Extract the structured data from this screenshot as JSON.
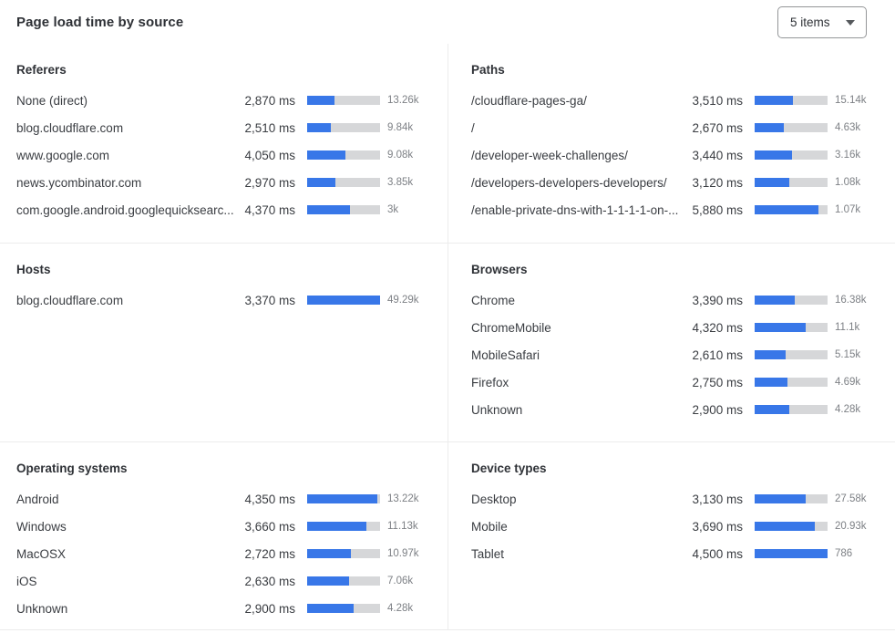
{
  "header": {
    "title": "Page load time by source",
    "items_select": {
      "value": "5 items"
    }
  },
  "colors": {
    "bar_fill": "#3877e8",
    "bar_track": "#d6d7d9",
    "divider": "#ececec"
  },
  "panels": [
    {
      "title": "Referers",
      "rows": [
        {
          "label": "None (direct)",
          "time": "2,870 ms",
          "count": "13.26k",
          "pct": 38
        },
        {
          "label": "blog.cloudflare.com",
          "time": "2,510 ms",
          "count": "9.84k",
          "pct": 33
        },
        {
          "label": "www.google.com",
          "time": "4,050 ms",
          "count": "9.08k",
          "pct": 52
        },
        {
          "label": "news.ycombinator.com",
          "time": "2,970 ms",
          "count": "3.85k",
          "pct": 39
        },
        {
          "label": "com.google.android.googlequicksearc...",
          "time": "4,370 ms",
          "count": "3k",
          "pct": 59
        }
      ]
    },
    {
      "title": "Paths",
      "rows": [
        {
          "label": "/cloudflare-pages-ga/",
          "time": "3,510 ms",
          "count": "15.14k",
          "pct": 52
        },
        {
          "label": "/",
          "time": "2,670 ms",
          "count": "4.63k",
          "pct": 40
        },
        {
          "label": "/developer-week-challenges/",
          "time": "3,440 ms",
          "count": "3.16k",
          "pct": 51
        },
        {
          "label": "/developers-developers-developers/",
          "time": "3,120 ms",
          "count": "1.08k",
          "pct": 47
        },
        {
          "label": "/enable-private-dns-with-1-1-1-1-on-...",
          "time": "5,880 ms",
          "count": "1.07k",
          "pct": 88
        }
      ]
    },
    {
      "title": "Hosts",
      "rows": [
        {
          "label": "blog.cloudflare.com",
          "time": "3,370 ms",
          "count": "49.29k",
          "pct": 100
        }
      ]
    },
    {
      "title": "Browsers",
      "rows": [
        {
          "label": "Chrome",
          "time": "3,390 ms",
          "count": "16.38k",
          "pct": 55
        },
        {
          "label": "ChromeMobile",
          "time": "4,320 ms",
          "count": "11.1k",
          "pct": 70
        },
        {
          "label": "MobileSafari",
          "time": "2,610 ms",
          "count": "5.15k",
          "pct": 42
        },
        {
          "label": "Firefox",
          "time": "2,750 ms",
          "count": "4.69k",
          "pct": 45
        },
        {
          "label": "Unknown",
          "time": "2,900 ms",
          "count": "4.28k",
          "pct": 47
        }
      ]
    },
    {
      "title": "Operating systems",
      "rows": [
        {
          "label": "Android",
          "time": "4,350 ms",
          "count": "13.22k",
          "pct": 96
        },
        {
          "label": "Windows",
          "time": "3,660 ms",
          "count": "11.13k",
          "pct": 81
        },
        {
          "label": "MacOSX",
          "time": "2,720 ms",
          "count": "10.97k",
          "pct": 60
        },
        {
          "label": "iOS",
          "time": "2,630 ms",
          "count": "7.06k",
          "pct": 58
        },
        {
          "label": "Unknown",
          "time": "2,900 ms",
          "count": "4.28k",
          "pct": 64
        }
      ]
    },
    {
      "title": "Device types",
      "rows": [
        {
          "label": "Desktop",
          "time": "3,130 ms",
          "count": "27.58k",
          "pct": 70
        },
        {
          "label": "Mobile",
          "time": "3,690 ms",
          "count": "20.93k",
          "pct": 82
        },
        {
          "label": "Tablet",
          "time": "4,500 ms",
          "count": "786",
          "pct": 100
        }
      ]
    }
  ],
  "chart_data": [
    {
      "type": "bar",
      "title": "Referers",
      "categories": [
        "None (direct)",
        "blog.cloudflare.com",
        "www.google.com",
        "news.ycombinator.com",
        "com.google.android.googlequicksearc..."
      ],
      "values": [
        2870,
        2510,
        4050,
        2970,
        4370
      ],
      "value_unit": "ms",
      "counts": [
        13260,
        9840,
        9080,
        3850,
        3000
      ]
    },
    {
      "type": "bar",
      "title": "Paths",
      "categories": [
        "/cloudflare-pages-ga/",
        "/",
        "/developer-week-challenges/",
        "/developers-developers-developers/",
        "/enable-private-dns-with-1-1-1-1-on-..."
      ],
      "values": [
        3510,
        2670,
        3440,
        3120,
        5880
      ],
      "value_unit": "ms",
      "counts": [
        15140,
        4630,
        3160,
        1080,
        1070
      ]
    },
    {
      "type": "bar",
      "title": "Hosts",
      "categories": [
        "blog.cloudflare.com"
      ],
      "values": [
        3370
      ],
      "value_unit": "ms",
      "counts": [
        49290
      ]
    },
    {
      "type": "bar",
      "title": "Browsers",
      "categories": [
        "Chrome",
        "ChromeMobile",
        "MobileSafari",
        "Firefox",
        "Unknown"
      ],
      "values": [
        3390,
        4320,
        2610,
        2750,
        2900
      ],
      "value_unit": "ms",
      "counts": [
        16380,
        11100,
        5150,
        4690,
        4280
      ]
    },
    {
      "type": "bar",
      "title": "Operating systems",
      "categories": [
        "Android",
        "Windows",
        "MacOSX",
        "iOS",
        "Unknown"
      ],
      "values": [
        4350,
        3660,
        2720,
        2630,
        2900
      ],
      "value_unit": "ms",
      "counts": [
        13220,
        11130,
        10970,
        7060,
        4280
      ]
    },
    {
      "type": "bar",
      "title": "Device types",
      "categories": [
        "Desktop",
        "Mobile",
        "Tablet"
      ],
      "values": [
        3130,
        3690,
        4500
      ],
      "value_unit": "ms",
      "counts": [
        27580,
        20930,
        786
      ]
    }
  ]
}
